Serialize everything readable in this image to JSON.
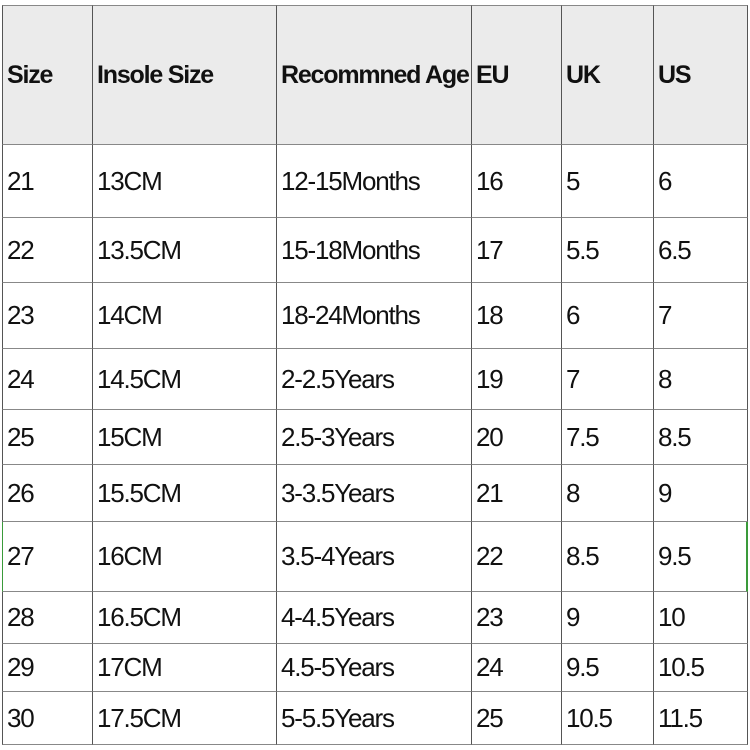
{
  "table": {
    "header": [
      "Size",
      "Insole Size",
      "Recommned Age",
      "EU",
      "UK",
      "US"
    ],
    "rows": [
      [
        "21",
        "13CM",
        "12-15Months",
        "16",
        "5",
        "6"
      ],
      [
        "22",
        "13.5CM",
        "15-18Months",
        "17",
        "5.5",
        "6.5"
      ],
      [
        "23",
        "14CM",
        "18-24Months",
        "18",
        "6",
        "7"
      ],
      [
        "24",
        "14.5CM",
        "2-2.5Years",
        "19",
        "7",
        "8"
      ],
      [
        "25",
        "15CM",
        "2.5-3Years",
        "20",
        "7.5",
        "8.5"
      ],
      [
        "26",
        "15.5CM",
        "3-3.5Years",
        "21",
        "8",
        "9"
      ],
      [
        "27",
        "16CM",
        "3.5-4Years",
        "22",
        "8.5",
        "9.5"
      ],
      [
        "28",
        "16.5CM",
        "4-4.5Years",
        "23",
        "9",
        "10"
      ],
      [
        "29",
        "17CM",
        "4.5-5Years",
        "24",
        "9.5",
        "10.5"
      ],
      [
        "30",
        "17.5CM",
        "5-5.5Years",
        "25",
        "10.5",
        "11.5"
      ]
    ]
  }
}
